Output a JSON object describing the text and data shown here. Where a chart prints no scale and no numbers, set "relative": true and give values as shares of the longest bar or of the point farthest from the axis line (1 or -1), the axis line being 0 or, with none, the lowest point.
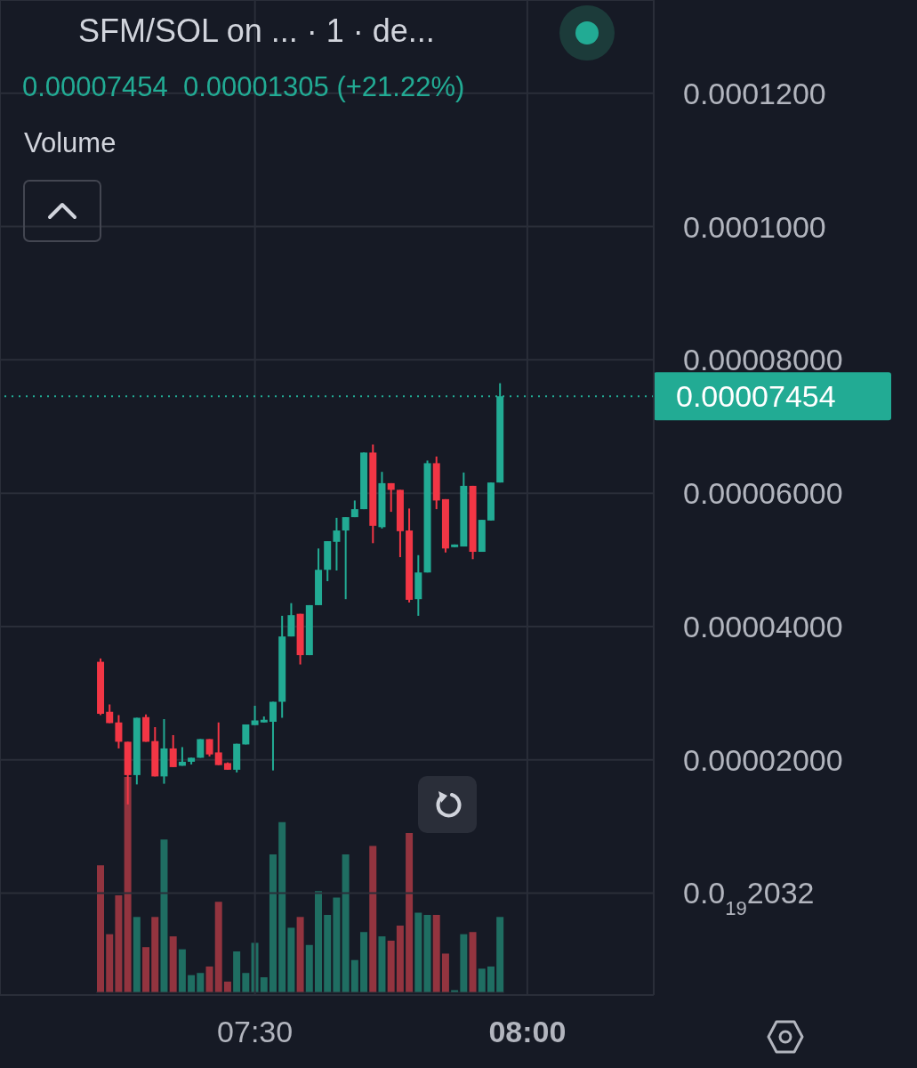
{
  "chart_data": [
    {
      "type": "candlestick",
      "title": "SFM/SOL on ...  · 1 · de...",
      "subtitle": "0.00007454  0.00001305 (+21.22%)",
      "x": [
        7.2167,
        7.2333,
        7.25,
        7.2667,
        7.2833,
        7.3,
        7.3167,
        7.3333,
        7.35,
        7.3667,
        7.3833,
        7.4,
        7.4167,
        7.4333,
        7.45,
        7.4667,
        7.4833,
        7.5,
        7.5167,
        7.5333,
        7.55,
        7.5667,
        7.5833,
        7.6,
        7.6167,
        7.6333,
        7.65,
        7.6667,
        7.6833,
        7.7,
        7.7167,
        7.7333,
        7.75,
        7.7667,
        7.7833,
        7.8,
        7.8167,
        7.8333,
        7.85,
        7.8667,
        7.8833,
        7.9,
        7.9167,
        7.9333,
        7.95
      ],
      "ohlc": [
        [
          3.47e-05,
          3.52e-05,
          2.67e-05,
          2.69e-05
        ],
        [
          2.72e-05,
          2.83e-05,
          2.55e-05,
          2.55e-05
        ],
        [
          2.56e-05,
          2.67e-05,
          2.17e-05,
          2.27e-05
        ],
        [
          2.27e-05,
          2.27e-05,
          1.33e-05,
          1.77e-05
        ],
        [
          1.77e-05,
          2.63e-05,
          1.63e-05,
          2.63e-05
        ],
        [
          2.64e-05,
          2.68e-05,
          2.27e-05,
          2.27e-05
        ],
        [
          2.28e-05,
          2.49e-05,
          1.75e-05,
          1.75e-05
        ],
        [
          1.75e-05,
          2.61e-05,
          1.64e-05,
          2.17e-05
        ],
        [
          2.17e-05,
          2.37e-05,
          1.89e-05,
          1.89e-05
        ],
        [
          1.91e-05,
          2.19e-05,
          1.91e-05,
          1.97e-05
        ],
        [
          1.97e-05,
          2.03e-05,
          1.93e-05,
          2.03e-05
        ],
        [
          2.03e-05,
          2.31e-05,
          2.03e-05,
          2.31e-05
        ],
        [
          2.31e-05,
          2.31e-05,
          2.05e-05,
          2.08e-05
        ],
        [
          2.11e-05,
          2.56e-05,
          1.92e-05,
          1.92e-05
        ],
        [
          1.95e-05,
          1.96e-05,
          1.85e-05,
          1.85e-05
        ],
        [
          1.85e-05,
          2.24e-05,
          1.81e-05,
          2.24e-05
        ],
        [
          2.23e-05,
          2.53e-05,
          2.23e-05,
          2.53e-05
        ],
        [
          2.52e-05,
          2.81e-05,
          2.52e-05,
          2.59e-05
        ],
        [
          2.56e-05,
          2.65e-05,
          2.56e-05,
          2.6e-05
        ],
        [
          2.57e-05,
          2.87e-05,
          1.84e-05,
          2.87e-05
        ],
        [
          2.87e-05,
          4.16e-05,
          2.63e-05,
          3.85e-05
        ],
        [
          3.85e-05,
          4.35e-05,
          3.85e-05,
          4.17e-05
        ],
        [
          4.19e-05,
          4.19e-05,
          3.43e-05,
          3.57e-05
        ],
        [
          3.57e-05,
          4.32e-05,
          3.57e-05,
          4.32e-05
        ],
        [
          4.32e-05,
          5.17e-05,
          4.32e-05,
          4.85e-05
        ],
        [
          4.85e-05,
          5.28e-05,
          4.68e-05,
          5.28e-05
        ],
        [
          5.27e-05,
          5.63e-05,
          4.84e-05,
          5.44e-05
        ],
        [
          5.44e-05,
          5.64e-05,
          4.41e-05,
          5.64e-05
        ],
        [
          5.64e-05,
          5.89e-05,
          5.64e-05,
          5.76e-05
        ],
        [
          5.76e-05,
          6.61e-05,
          5.76e-05,
          6.61e-05
        ],
        [
          6.61e-05,
          6.73e-05,
          5.25e-05,
          5.51e-05
        ],
        [
          5.49e-05,
          6.32e-05,
          5.47e-05,
          6.15e-05
        ],
        [
          6.15e-05,
          6.15e-05,
          5.72e-05,
          6.05e-05
        ],
        [
          6.05e-05,
          6.05e-05,
          5.04e-05,
          5.43e-05
        ],
        [
          5.44e-05,
          5.77e-05,
          4.36e-05,
          4.4e-05
        ],
        [
          4.41e-05,
          5.07e-05,
          4.16e-05,
          4.81e-05
        ],
        [
          4.81e-05,
          6.49e-05,
          4.81e-05,
          6.45e-05
        ],
        [
          6.45e-05,
          6.55e-05,
          5.76e-05,
          5.89e-05
        ],
        [
          5.91e-05,
          5.91e-05,
          5.11e-05,
          5.17e-05
        ],
        [
          5.19e-05,
          5.23e-05,
          5.19e-05,
          5.23e-05
        ],
        [
          5.2e-05,
          6.31e-05,
          5.2e-05,
          6.11e-05
        ],
        [
          6.11e-05,
          6.11e-05,
          5.01e-05,
          5.12e-05
        ],
        [
          5.12e-05,
          5.6e-05,
          5.12e-05,
          5.6e-05
        ],
        [
          5.59e-05,
          6.16e-05,
          5.59e-05,
          6.16e-05
        ],
        [
          6.16e-05,
          7.65e-05,
          6.16e-05,
          7.454e-05
        ]
      ],
      "colors": [
        "#f23645",
        "#f23645",
        "#f23645",
        "#f23645",
        "#22ab94",
        "#f23645",
        "#f23645",
        "#22ab94",
        "#f23645",
        "#22ab94",
        "#22ab94",
        "#22ab94",
        "#f23645",
        "#f23645",
        "#f23645",
        "#22ab94",
        "#22ab94",
        "#22ab94",
        "#22ab94",
        "#22ab94",
        "#22ab94",
        "#22ab94",
        "#f23645",
        "#22ab94",
        "#22ab94",
        "#22ab94",
        "#22ab94",
        "#22ab94",
        "#22ab94",
        "#22ab94",
        "#f23645",
        "#22ab94",
        "#f23645",
        "#f23645",
        "#f23645",
        "#22ab94",
        "#22ab94",
        "#f23645",
        "#f23645",
        "#22ab94",
        "#22ab94",
        "#f23645",
        "#22ab94",
        "#22ab94",
        "#22ab94"
      ],
      "xlim": [
        7.032,
        8.232
      ],
      "xticks": [
        {
          "value": 7.5,
          "label": "07:30"
        },
        {
          "value": 8,
          "label": "08:00"
        }
      ],
      "ylim": [
        -1.53e-05,
        0.000134
      ],
      "yticks": [
        {
          "value": 2.032e-20,
          "label": "0.0$_{19}$2032"
        },
        {
          "value": 2e-05,
          "label": "0.00002000"
        },
        {
          "value": 4e-05,
          "label": "0.00004000"
        },
        {
          "value": 6e-05,
          "label": "0.00006000"
        },
        {
          "value": 8e-05,
          "label": "0.00008000"
        },
        {
          "value": 0.0001,
          "label": "0.0001000"
        },
        {
          "value": 0.00012,
          "label": "0.0001200"
        }
      ],
      "grid": true,
      "ref_lines": [
        {
          "axis": "y",
          "value": 7.454e-05,
          "label": "0.00007454",
          "color": "#22ab94",
          "line_style": "dotted"
        }
      ]
    },
    {
      "type": "bar",
      "title": "Volume",
      "relative": true,
      "categories": [
        null,
        null,
        null,
        null,
        null,
        null,
        null,
        null,
        null,
        null,
        null,
        null,
        null,
        null,
        null,
        null,
        null,
        null,
        null,
        null,
        null,
        null,
        null,
        null,
        null,
        null,
        null,
        null,
        null,
        null,
        null,
        null,
        null,
        null,
        null,
        null,
        null,
        null,
        null,
        null,
        null,
        null,
        null,
        null,
        null
      ],
      "values": [
        0.59,
        0.27,
        0.45,
        1,
        0.35,
        0.21,
        0.35,
        0.71,
        0.26,
        0.2,
        0.08,
        0.09,
        0.12,
        0.42,
        0.05,
        0.19,
        0.09,
        0.23,
        0.07,
        0.64,
        0.79,
        0.3,
        0.35,
        0.22,
        0.47,
        0.36,
        0.44,
        0.64,
        0.15,
        0.28,
        0.68,
        0.26,
        0.24,
        0.31,
        0.74,
        0.37,
        0.36,
        0.36,
        0.18,
        0.01,
        0.27,
        0.28,
        0.11,
        0.12,
        0.35
      ],
      "colors": [
        "#93343f",
        "#93343f",
        "#93343f",
        "#93343f",
        "#1f6e62",
        "#93343f",
        "#93343f",
        "#1f6e62",
        "#93343f",
        "#1f6e62",
        "#1f6e62",
        "#1f6e62",
        "#93343f",
        "#93343f",
        "#93343f",
        "#1f6e62",
        "#1f6e62",
        "#1f6e62",
        "#1f6e62",
        "#1f6e62",
        "#1f6e62",
        "#1f6e62",
        "#93343f",
        "#1f6e62",
        "#1f6e62",
        "#1f6e62",
        "#1f6e62",
        "#1f6e62",
        "#1f6e62",
        "#1f6e62",
        "#93343f",
        "#1f6e62",
        "#93343f",
        "#93343f",
        "#93343f",
        "#1f6e62",
        "#1f6e62",
        "#93343f",
        "#93343f",
        "#1f6e62",
        "#1f6e62",
        "#93343f",
        "#1f6e62",
        "#1f6e62",
        "#1f6e62"
      ]
    }
  ]
}
